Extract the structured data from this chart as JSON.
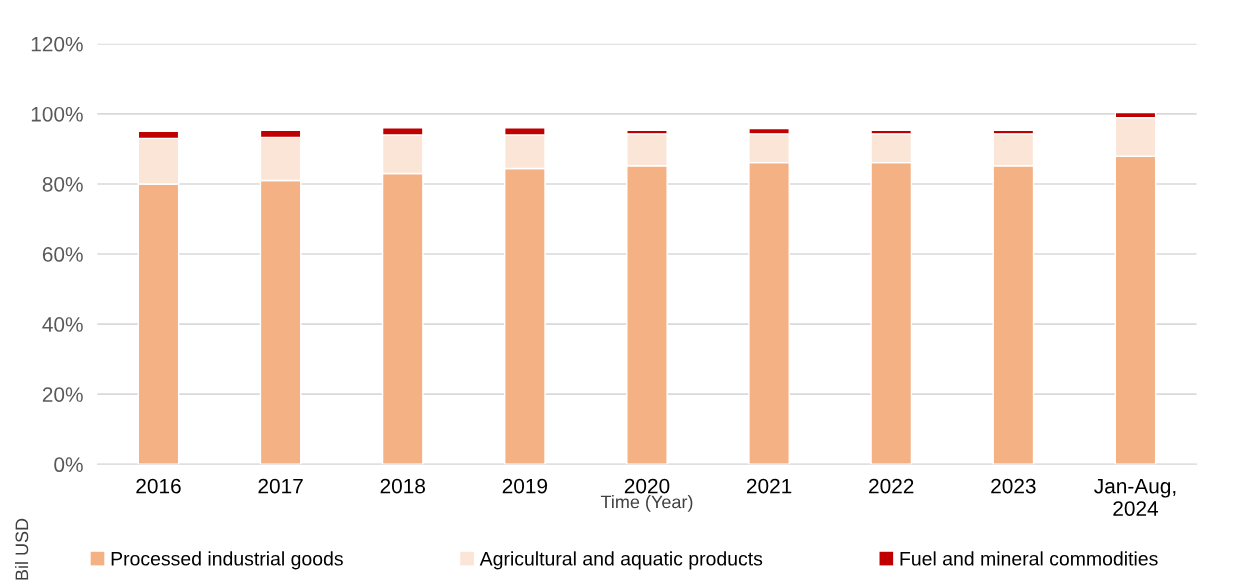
{
  "chart_data": {
    "type": "bar",
    "stacked": true,
    "xlabel": "Time (Year)",
    "ylabel": "Bil USD",
    "categories": [
      "2016",
      "2017",
      "2018",
      "2019",
      "2020",
      "2021",
      "2022",
      "2023",
      "Jan-Aug,\n2024"
    ],
    "series": [
      {
        "name": "Processed industrial goods",
        "color": "#f4b183",
        "values": [
          80,
          81,
          83,
          84.4,
          85.2,
          86.1,
          86.1,
          85.2,
          87.9
        ]
      },
      {
        "name": "Agricultural and aquatic products",
        "color": "#fbe5d6",
        "values": [
          13,
          12.3,
          11,
          9.6,
          9.1,
          8.2,
          8.2,
          9.1,
          11
        ]
      },
      {
        "name": "Fuel and mineral commodities",
        "color": "#c00000",
        "values": [
          2,
          2,
          2,
          2,
          1,
          1.5,
          1,
          1,
          1.5
        ]
      }
    ],
    "ylim": [
      0,
      120
    ],
    "yticks": [
      {
        "value": 0,
        "label": "0%"
      },
      {
        "value": 20,
        "label": "20%"
      },
      {
        "value": 40,
        "label": "40%"
      },
      {
        "value": 60,
        "label": "60%"
      },
      {
        "value": 80,
        "label": "80%"
      },
      {
        "value": 100,
        "label": "100%"
      },
      {
        "value": 120,
        "label": "120%"
      }
    ],
    "grid": "y",
    "legend": "bottom"
  }
}
